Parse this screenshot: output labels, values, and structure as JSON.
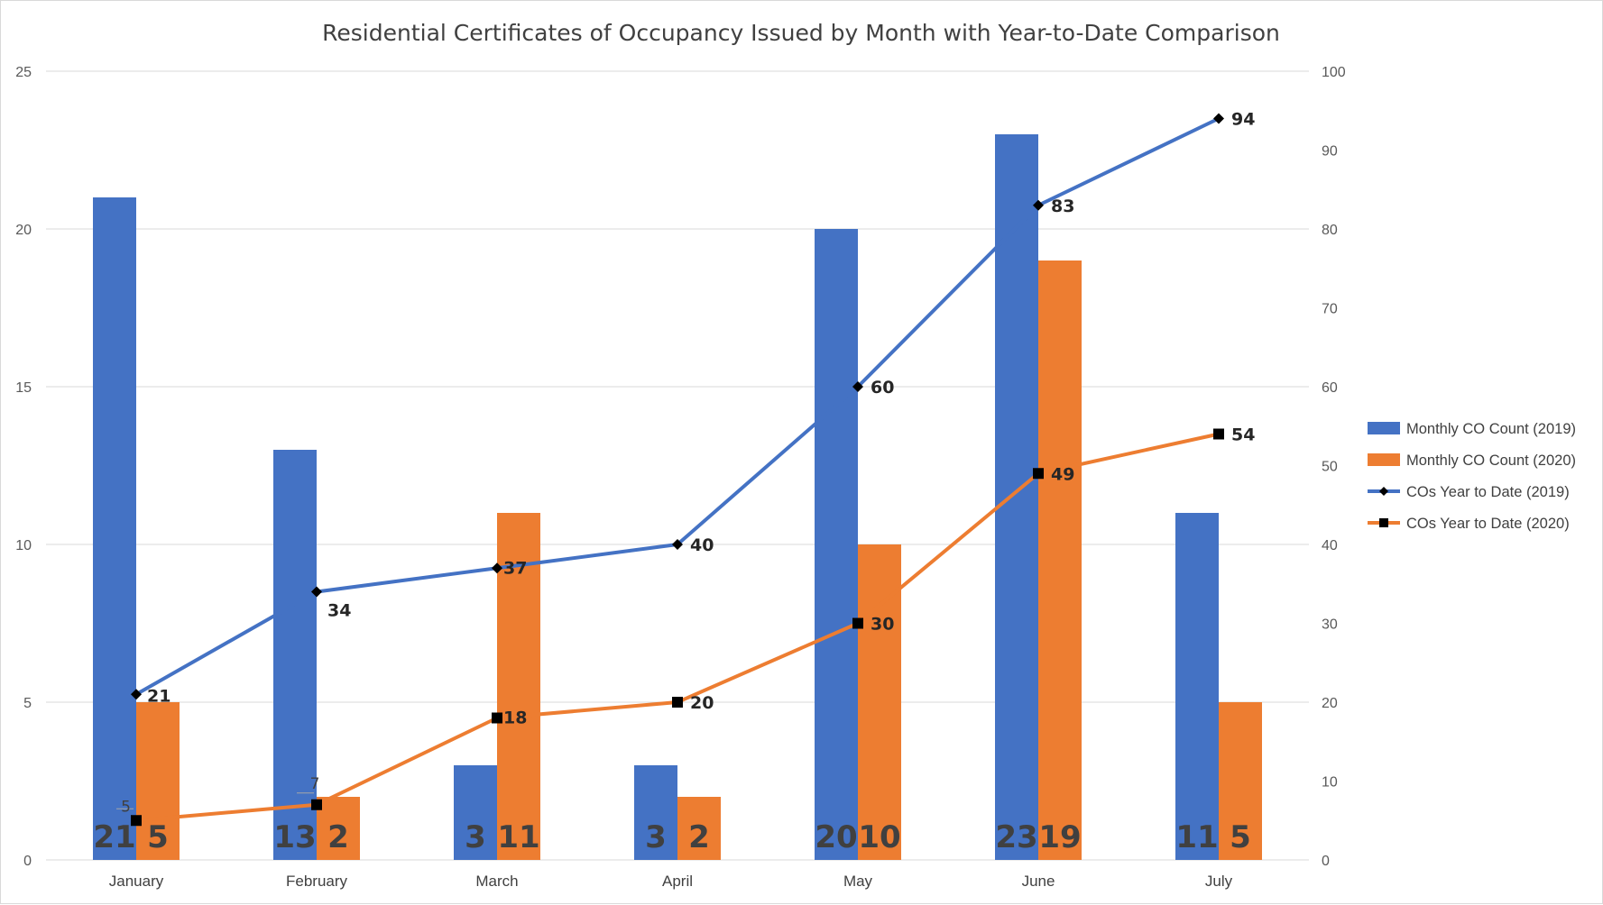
{
  "chart_data": {
    "type": "bar",
    "title": "Residential Certificates of Occupancy Issued by Month with Year-to-Date Comparison",
    "categories": [
      "January",
      "February",
      "March",
      "April",
      "May",
      "June",
      "July"
    ],
    "y_left": {
      "ylim": [
        0,
        25
      ],
      "ticks": [
        0,
        5,
        10,
        15,
        20,
        25
      ]
    },
    "y_right": {
      "ylim": [
        0,
        100
      ],
      "ticks": [
        0,
        10,
        20,
        30,
        40,
        50,
        60,
        70,
        80,
        90,
        100
      ]
    },
    "grid": true,
    "legend_position": "right",
    "series": [
      {
        "name": "Monthly CO Count (2019)",
        "kind": "bar",
        "axis": "left",
        "color": "#4472C4",
        "values": [
          21,
          13,
          3,
          3,
          20,
          23,
          11
        ],
        "labels": [
          "21",
          "13",
          "3",
          "3",
          "20",
          "23",
          "11"
        ]
      },
      {
        "name": "Monthly CO Count (2020)",
        "kind": "bar",
        "axis": "left",
        "color": "#ED7D31",
        "values": [
          5,
          2,
          11,
          2,
          10,
          19,
          5
        ],
        "labels": [
          "5",
          "2",
          "11",
          "2",
          "10",
          "19",
          "5"
        ]
      },
      {
        "name": "COs Year to Date (2019)",
        "kind": "line",
        "marker": "diamond",
        "axis": "right",
        "color": "#4472C4",
        "marker_color": "#000000",
        "values": [
          21,
          34,
          37,
          40,
          60,
          83,
          94
        ],
        "labels": [
          "21",
          "34",
          "37",
          "40",
          "60",
          "83",
          "94"
        ]
      },
      {
        "name": "COs Year to Date (2020)",
        "kind": "line",
        "marker": "square",
        "axis": "right",
        "color": "#ED7D31",
        "marker_color": "#000000",
        "values": [
          5,
          7,
          18,
          20,
          30,
          49,
          54
        ],
        "labels": [
          "5",
          "7",
          "18",
          "20",
          "30",
          "49",
          "54"
        ]
      }
    ]
  }
}
